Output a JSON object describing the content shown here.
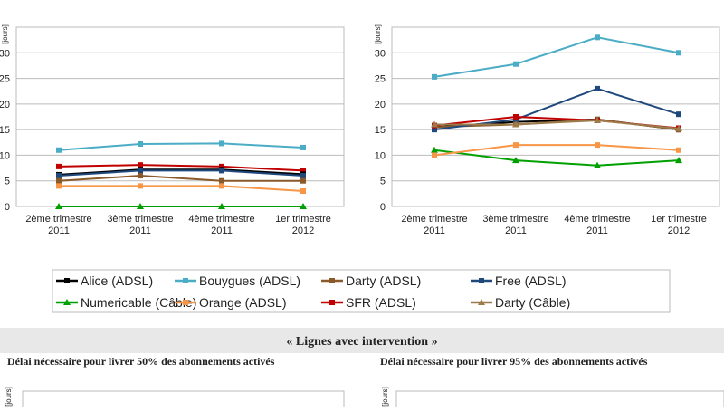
{
  "chart_data": [
    {
      "type": "line",
      "y_label": "[jours]",
      "categories": [
        [
          "2ème trimestre",
          "2011"
        ],
        [
          "3ème trimestre",
          "2011"
        ],
        [
          "4ème trimestre",
          "2011"
        ],
        [
          "1er trimestre",
          "2012"
        ]
      ],
      "ylim": [
        0,
        35
      ],
      "yticks": [
        0,
        5,
        10,
        15,
        20,
        25,
        30
      ],
      "grid": true,
      "series": [
        {
          "color": "#4bacc6",
          "marker": "square",
          "values": [
            11,
            12.2,
            12.3,
            11.5
          ]
        },
        {
          "color": "#c00000",
          "marker": "square",
          "values": [
            7.8,
            8.1,
            7.8,
            7
          ]
        },
        {
          "color": "#000000",
          "marker": "square",
          "values": [
            6.2,
            7.2,
            7.2,
            6.3
          ]
        },
        {
          "color": "#1f497d",
          "marker": "square",
          "values": [
            6,
            7,
            7,
            6
          ]
        },
        {
          "color": "#8b5a2b",
          "marker": "square",
          "values": [
            5,
            6,
            5,
            5
          ]
        },
        {
          "color": "#f79646",
          "marker": "square",
          "values": [
            4,
            4,
            4,
            3
          ]
        },
        {
          "color": "#00a000",
          "marker": "triangle",
          "values": [
            0,
            0,
            0,
            0
          ]
        }
      ]
    },
    {
      "type": "line",
      "y_label": "[jours]",
      "categories": [
        [
          "2ème trimestre",
          "2011"
        ],
        [
          "3ème trimestre",
          "2011"
        ],
        [
          "4ème trimestre",
          "2011"
        ],
        [
          "1er trimestre",
          "2012"
        ]
      ],
      "ylim": [
        0,
        35
      ],
      "yticks": [
        0,
        5,
        10,
        15,
        20,
        25,
        30
      ],
      "grid": true,
      "series": [
        {
          "name": "Alice (ADSL)",
          "color": "#000000",
          "marker": "square",
          "values": [
            15.5,
            16.5,
            17,
            15
          ]
        },
        {
          "name": "Bouygues (ADSL)",
          "color": "#4bacc6",
          "marker": "square",
          "values": [
            25.3,
            27.8,
            33,
            30
          ]
        },
        {
          "name": "Darty (ADSL)",
          "color": "#8b5a2b",
          "marker": "square",
          "values": [
            15.5,
            16,
            17,
            15
          ]
        },
        {
          "name": "Free (ADSL)",
          "color": "#1f497d",
          "marker": "square",
          "values": [
            15,
            17,
            23,
            18
          ]
        },
        {
          "name": "Numericable (Câble)",
          "color": "#00a000",
          "marker": "triangle",
          "values": [
            11,
            9,
            8,
            9
          ]
        },
        {
          "name": "Orange (ADSL)",
          "color": "#f79646",
          "marker": "square",
          "values": [
            10,
            12,
            12,
            11
          ]
        },
        {
          "name": "SFR (ADSL)",
          "color": "#c00000",
          "marker": "square",
          "values": [
            15.8,
            17.5,
            16.8,
            15.3
          ]
        },
        {
          "name": "Darty (Câble)",
          "color": "#9c7a4a",
          "marker": "triangle",
          "values": [
            16,
            16,
            16.8,
            15.2
          ]
        }
      ]
    }
  ],
  "lower_section": {
    "title": "« Lignes avec intervention »",
    "panels": [
      {
        "title": "Délai nécessaire pour livrer 50% des abonnements activés",
        "y_label": "[jours]"
      },
      {
        "title": "Délai nécessaire pour livrer 95% des abonnements activés",
        "y_label": "[jours]"
      }
    ]
  }
}
